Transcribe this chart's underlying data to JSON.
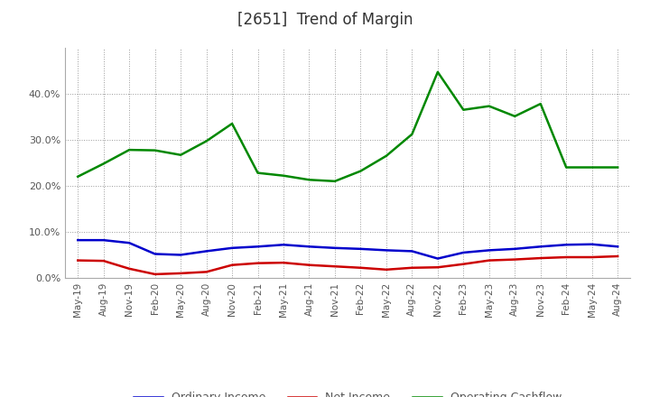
{
  "title": "[2651]  Trend of Margin",
  "title_color": "#333333",
  "x_labels": [
    "May-19",
    "Aug-19",
    "Nov-19",
    "Feb-20",
    "May-20",
    "Aug-20",
    "Nov-20",
    "Feb-21",
    "May-21",
    "Aug-21",
    "Nov-21",
    "Feb-22",
    "May-22",
    "Aug-22",
    "Nov-22",
    "Feb-23",
    "May-23",
    "Aug-23",
    "Nov-23",
    "Feb-24",
    "May-24",
    "Aug-24"
  ],
  "ordinary_income": [
    0.082,
    0.082,
    0.076,
    0.052,
    0.05,
    0.058,
    0.065,
    0.068,
    0.072,
    0.068,
    0.065,
    0.063,
    0.06,
    0.058,
    0.042,
    0.055,
    0.06,
    0.063,
    0.068,
    0.072,
    0.073,
    0.068
  ],
  "net_income": [
    0.038,
    0.037,
    0.02,
    0.008,
    0.01,
    0.013,
    0.028,
    0.032,
    0.033,
    0.028,
    0.025,
    0.022,
    0.018,
    0.022,
    0.023,
    0.03,
    0.038,
    0.04,
    0.043,
    0.045,
    0.045,
    0.047
  ],
  "operating_cashflow": [
    0.22,
    0.248,
    0.278,
    0.277,
    0.267,
    0.297,
    0.335,
    0.228,
    0.222,
    0.213,
    0.21,
    0.232,
    0.265,
    0.312,
    0.447,
    0.365,
    0.373,
    0.351,
    0.378,
    0.24,
    0.24,
    0.24
  ],
  "ordinary_income_color": "#0000cc",
  "net_income_color": "#cc0000",
  "operating_cashflow_color": "#008800",
  "ylim": [
    0.0,
    0.5
  ],
  "yticks": [
    0.0,
    0.1,
    0.2,
    0.3,
    0.4
  ],
  "background_color": "#ffffff",
  "grid_color": "#999999",
  "legend_labels": [
    "Ordinary Income",
    "Net Income",
    "Operating Cashflow"
  ]
}
